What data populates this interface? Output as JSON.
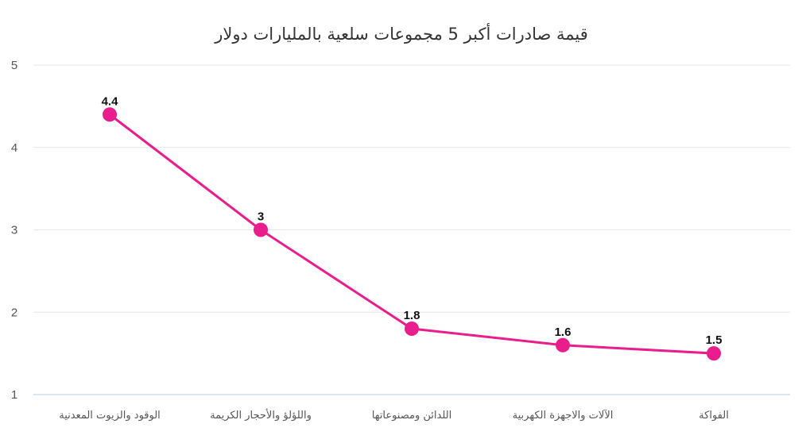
{
  "chart_data": {
    "type": "line",
    "title": "قيمة صادرات أكبر 5 مجموعات سلعية بالمليارات دولار",
    "xlabel": "",
    "ylabel": "",
    "categories": [
      "الوقود والزيوت المعدنية",
      "واللؤلؤ والأحجار الكريمة",
      "اللدائن ومصنوعاتها",
      "الآلات والاجهزة الكهربية",
      "الفواكة"
    ],
    "series": [
      {
        "values": [
          4.4,
          3,
          1.8,
          1.6,
          1.5
        ],
        "labels": [
          "4.4",
          "3",
          "1.8",
          "1.6",
          "1.5"
        ],
        "color": "#e91e8c"
      }
    ],
    "ylim": [
      1,
      5
    ],
    "yticks": [
      "1",
      "2",
      "3",
      "4",
      "5"
    ],
    "grid": "horizontal",
    "legend": "none"
  }
}
